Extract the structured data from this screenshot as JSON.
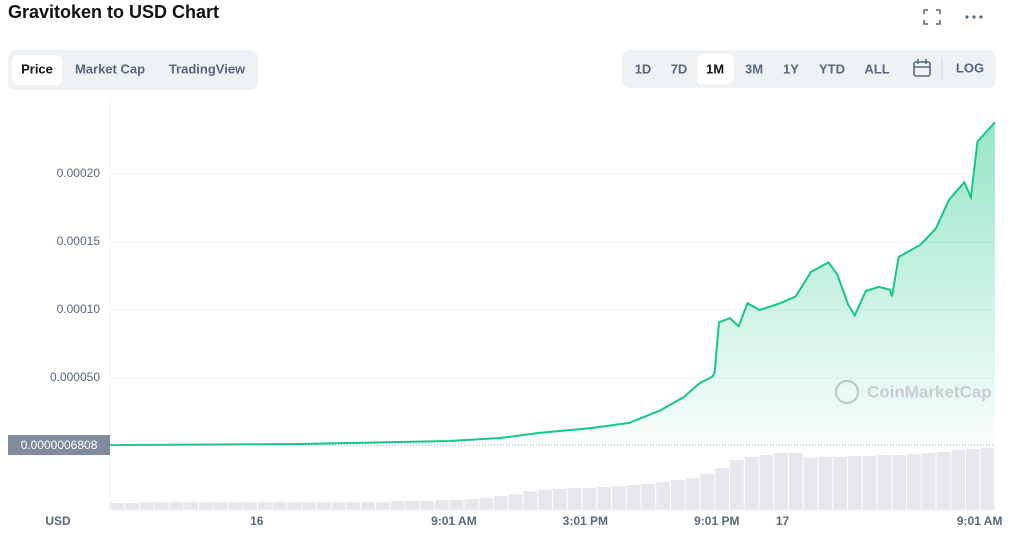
{
  "chart_data": {
    "type": "line",
    "title": "Gravitoken to USD Chart",
    "tabs": [
      "Price",
      "Market Cap",
      "TradingView"
    ],
    "ranges": [
      "1D",
      "7D",
      "1M",
      "3M",
      "1Y",
      "YTD",
      "ALL"
    ],
    "log_button": "LOG",
    "axis_label": "USD",
    "watermark": "CoinMarketCap",
    "current_price": {
      "value": 6.808e-07,
      "label": "0.0000006808"
    },
    "color": "#16c784",
    "x": [
      -6.7,
      2.0,
      8.8,
      11.1,
      12.9,
      15.2,
      17.0,
      18.4,
      19.5,
      20.2,
      20.8,
      20.9,
      21.1,
      21.6,
      22.0,
      22.4,
      22.96,
      23.9,
      24.6,
      25.3,
      26.1,
      26.5,
      27.0,
      27.3,
      27.8,
      28.4,
      28.9,
      29.0,
      29.3,
      30.3,
      31.0,
      31.6,
      32.3,
      32.6,
      32.9,
      33.7
    ],
    "values": [
      6.808e-07,
      1.5e-06,
      3.7e-06,
      5.9e-06,
      9.6e-06,
      1.3e-05,
      1.7e-05,
      2.6e-05,
      3.6e-05,
      4.6e-05,
      5.1e-05,
      5.4e-05,
      9.1e-05,
      9.4e-05,
      8.8e-05,
      0.000105,
      0.0001,
      0.000105,
      0.00011,
      0.000128,
      0.000135,
      0.000126,
      0.000104,
      9.6e-05,
      0.000114,
      0.000117,
      0.000115,
      0.00011,
      0.000139,
      0.000148,
      0.00016,
      0.000181,
      0.000194,
      0.000183,
      0.000224,
      0.000238
    ],
    "xlim": [
      -6.7,
      33.7
    ],
    "xticks": [
      {
        "value": 0,
        "label": "16"
      },
      {
        "value": 9,
        "label": "9:01 AM"
      },
      {
        "value": 15,
        "label": "3:01 PM"
      },
      {
        "value": 21,
        "label": "9:01 PM"
      },
      {
        "value": 24,
        "label": "17"
      },
      {
        "value": 33,
        "label": "9:01 AM"
      }
    ],
    "ylim": [
      0,
      0.00025
    ],
    "yticks": [
      {
        "value": 5e-05,
        "label": "0.000050"
      },
      {
        "value": 0.0001,
        "label": "0.00010"
      },
      {
        "value": 0.00015,
        "label": "0.00015"
      },
      {
        "value": 0.0002,
        "label": "0.00020"
      }
    ],
    "grid": true,
    "volume": {
      "ylim": [
        0,
        64
      ],
      "values": [
        7,
        7,
        8,
        8,
        8,
        8,
        8,
        8,
        8,
        8,
        8,
        8,
        8,
        8,
        8,
        8,
        8,
        8,
        8,
        9,
        9,
        9,
        10,
        10,
        11,
        12,
        14,
        16,
        19,
        20,
        21,
        22,
        22,
        23,
        24,
        25,
        26,
        28,
        30,
        32,
        36,
        42,
        50,
        53,
        55,
        57,
        57,
        52,
        53,
        53,
        54,
        54,
        55,
        55,
        56,
        57,
        58,
        60,
        61,
        62
      ]
    }
  }
}
